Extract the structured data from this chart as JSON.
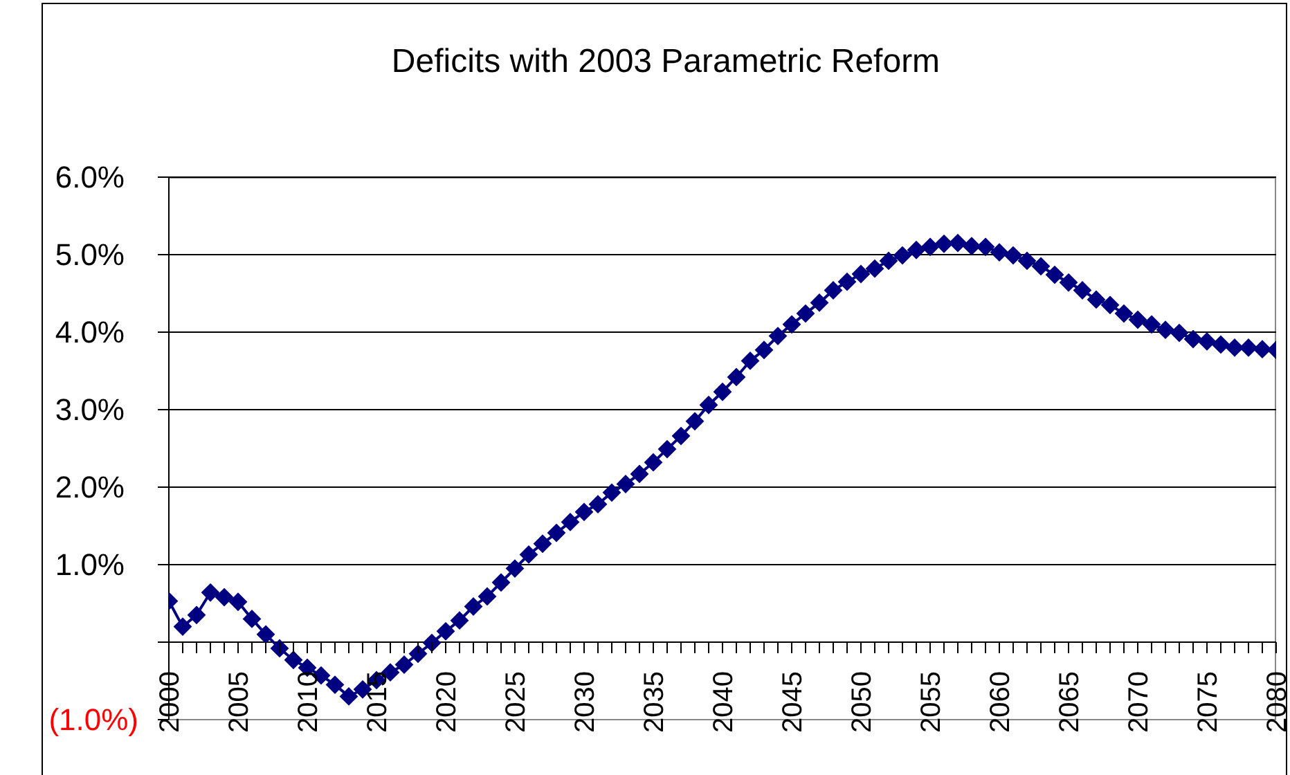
{
  "chart_data": {
    "type": "line",
    "title": "Deficits with 2003 Parametric Reform",
    "x": [
      2000,
      2001,
      2002,
      2003,
      2004,
      2005,
      2006,
      2007,
      2008,
      2009,
      2010,
      2011,
      2012,
      2013,
      2014,
      2015,
      2016,
      2017,
      2018,
      2019,
      2020,
      2021,
      2022,
      2023,
      2024,
      2025,
      2026,
      2027,
      2028,
      2029,
      2030,
      2031,
      2032,
      2033,
      2034,
      2035,
      2036,
      2037,
      2038,
      2039,
      2040,
      2041,
      2042,
      2043,
      2044,
      2045,
      2046,
      2047,
      2048,
      2049,
      2050,
      2051,
      2052,
      2053,
      2054,
      2055,
      2056,
      2057,
      2058,
      2059,
      2060,
      2061,
      2062,
      2063,
      2064,
      2065,
      2066,
      2067,
      2068,
      2069,
      2070,
      2071,
      2072,
      2073,
      2074,
      2075,
      2076,
      2077,
      2078,
      2079,
      2080
    ],
    "series": [
      {
        "color": "#000080",
        "values": [
          0.53,
          0.2,
          0.35,
          0.64,
          0.58,
          0.52,
          0.3,
          0.1,
          -0.08,
          -0.23,
          -0.33,
          -0.43,
          -0.55,
          -0.7,
          -0.61,
          -0.49,
          -0.39,
          -0.29,
          -0.15,
          -0.01,
          0.14,
          0.28,
          0.46,
          0.59,
          0.77,
          0.95,
          1.13,
          1.27,
          1.41,
          1.55,
          1.68,
          1.78,
          1.93,
          2.04,
          2.17,
          2.32,
          2.49,
          2.66,
          2.85,
          3.06,
          3.23,
          3.42,
          3.63,
          3.77,
          3.95,
          4.1,
          4.24,
          4.38,
          4.54,
          4.65,
          4.75,
          4.82,
          4.92,
          4.99,
          5.06,
          5.1,
          5.14,
          5.15,
          5.11,
          5.1,
          5.03,
          4.99,
          4.92,
          4.85,
          4.74,
          4.64,
          4.54,
          4.42,
          4.35,
          4.24,
          4.16,
          4.1,
          4.03,
          3.99,
          3.91,
          3.88,
          3.84,
          3.8,
          3.8,
          3.78,
          3.77
        ]
      }
    ],
    "xlim": [
      2000,
      2080
    ],
    "xticks": [
      2000,
      {
        "value": 2001,
        "label": null
      },
      {
        "value": 2002,
        "label": null
      },
      {
        "value": 2003,
        "label": null
      },
      {
        "value": 2004,
        "label": null
      },
      2005,
      {
        "value": 2006,
        "label": null
      },
      {
        "value": 2007,
        "label": null
      },
      {
        "value": 2008,
        "label": null
      },
      {
        "value": 2009,
        "label": null
      },
      2010,
      {
        "value": 2011,
        "label": null
      },
      {
        "value": 2012,
        "label": null
      },
      {
        "value": 2013,
        "label": null
      },
      {
        "value": 2014,
        "label": null
      },
      2015,
      {
        "value": 2016,
        "label": null
      },
      {
        "value": 2017,
        "label": null
      },
      {
        "value": 2018,
        "label": null
      },
      {
        "value": 2019,
        "label": null
      },
      2020,
      {
        "value": 2021,
        "label": null
      },
      {
        "value": 2022,
        "label": null
      },
      {
        "value": 2023,
        "label": null
      },
      {
        "value": 2024,
        "label": null
      },
      2025,
      {
        "value": 2026,
        "label": null
      },
      {
        "value": 2027,
        "label": null
      },
      {
        "value": 2028,
        "label": null
      },
      {
        "value": 2029,
        "label": null
      },
      2030,
      {
        "value": 2031,
        "label": null
      },
      {
        "value": 2032,
        "label": null
      },
      {
        "value": 2033,
        "label": null
      },
      {
        "value": 2034,
        "label": null
      },
      2035,
      {
        "value": 2036,
        "label": null
      },
      {
        "value": 2037,
        "label": null
      },
      {
        "value": 2038,
        "label": null
      },
      {
        "value": 2039,
        "label": null
      },
      2040,
      {
        "value": 2041,
        "label": null
      },
      {
        "value": 2042,
        "label": null
      },
      {
        "value": 2043,
        "label": null
      },
      {
        "value": 2044,
        "label": null
      },
      2045,
      {
        "value": 2046,
        "label": null
      },
      {
        "value": 2047,
        "label": null
      },
      {
        "value": 2048,
        "label": null
      },
      {
        "value": 2049,
        "label": null
      },
      2050,
      {
        "value": 2051,
        "label": null
      },
      {
        "value": 2052,
        "label": null
      },
      {
        "value": 2053,
        "label": null
      },
      {
        "value": 2054,
        "label": null
      },
      2055,
      {
        "value": 2056,
        "label": null
      },
      {
        "value": 2057,
        "label": null
      },
      {
        "value": 2058,
        "label": null
      },
      {
        "value": 2059,
        "label": null
      },
      2060,
      {
        "value": 2061,
        "label": null
      },
      {
        "value": 2062,
        "label": null
      },
      {
        "value": 2063,
        "label": null
      },
      {
        "value": 2064,
        "label": null
      },
      2065,
      {
        "value": 2066,
        "label": null
      },
      {
        "value": 2067,
        "label": null
      },
      {
        "value": 2068,
        "label": null
      },
      {
        "value": 2069,
        "label": null
      },
      2070,
      {
        "value": 2071,
        "label": null
      },
      {
        "value": 2072,
        "label": null
      },
      {
        "value": 2073,
        "label": null
      },
      {
        "value": 2074,
        "label": null
      },
      2075,
      {
        "value": 2076,
        "label": null
      },
      {
        "value": 2077,
        "label": null
      },
      {
        "value": 2078,
        "label": null
      },
      {
        "value": 2079,
        "label": null
      },
      2080
    ],
    "ylim": [
      -1,
      6
    ],
    "yticks": [
      {
        "value": -1,
        "label": "(1.0%)"
      },
      {
        "value": 0,
        "label": null
      },
      {
        "value": 1,
        "label": "1.0%"
      },
      {
        "value": 2,
        "label": "2.0%"
      },
      {
        "value": 3,
        "label": "3.0%"
      },
      {
        "value": 4,
        "label": "4.0%"
      },
      {
        "value": 5,
        "label": "5.0%"
      },
      {
        "value": 6,
        "label": "6.0%"
      }
    ],
    "grid": "y",
    "marker": "diamond",
    "line_style": "solid"
  }
}
